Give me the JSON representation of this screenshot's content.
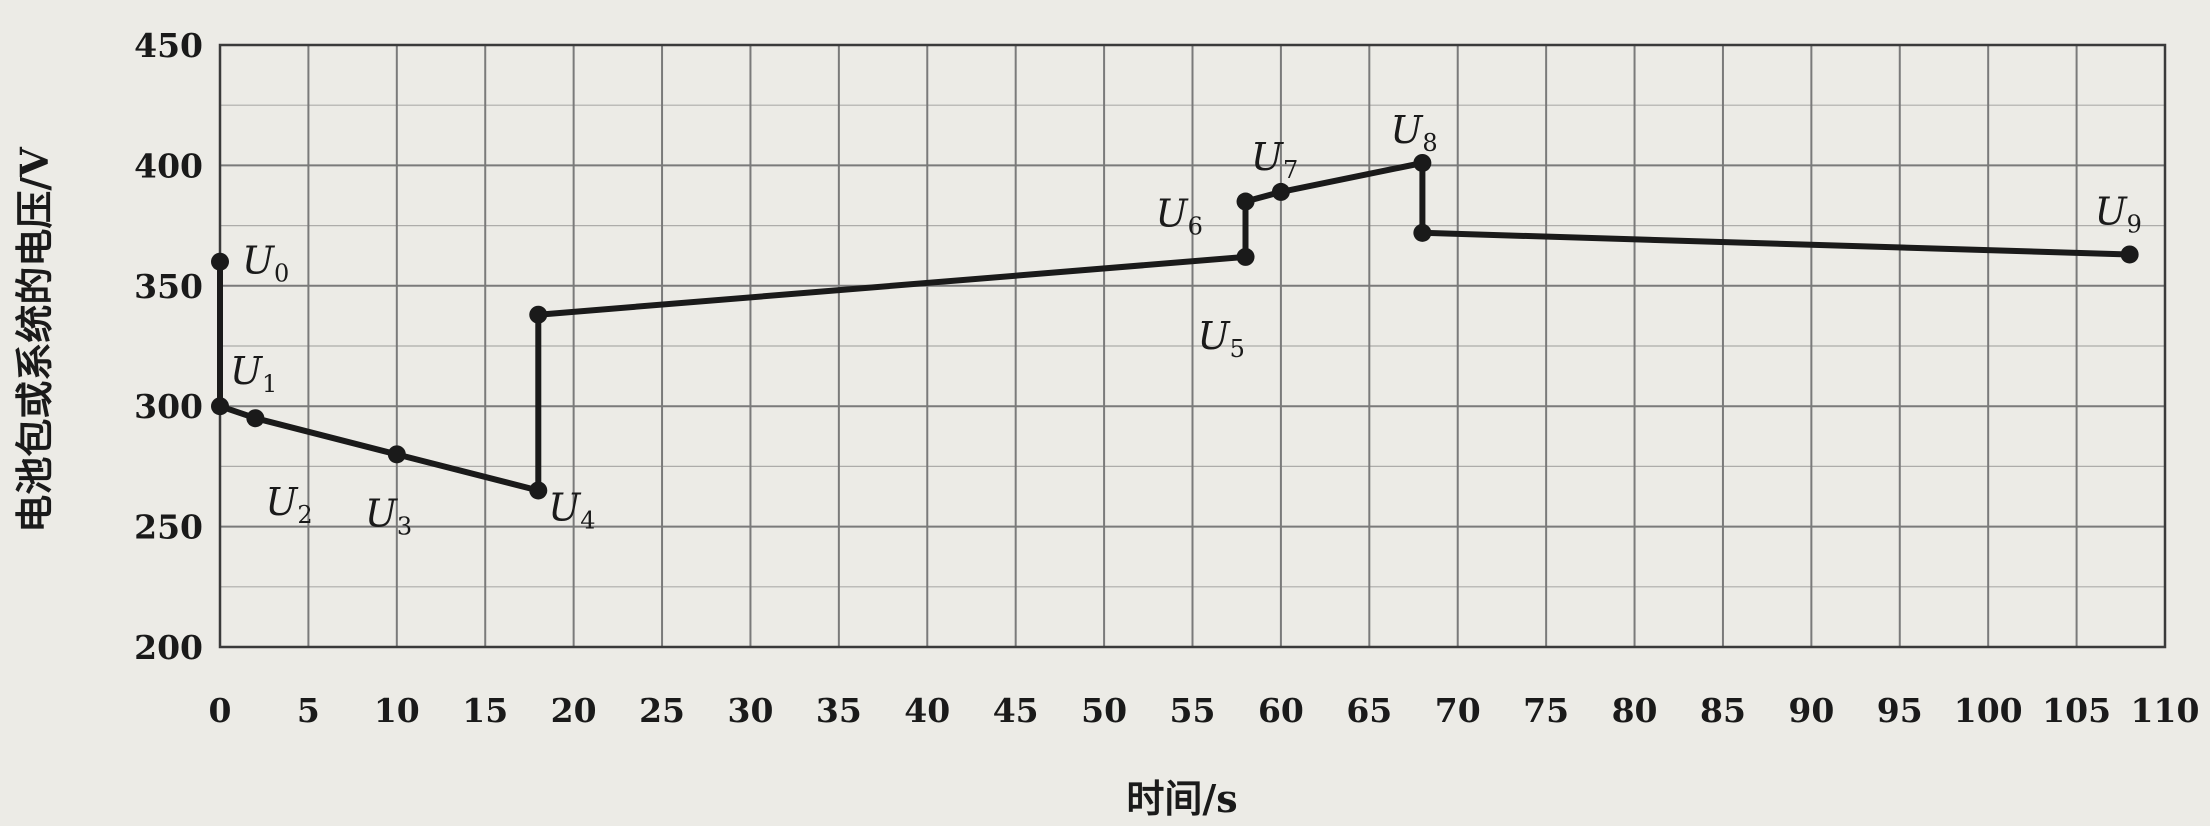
{
  "chart_data": {
    "type": "line",
    "title": "",
    "xlabel": "时间/s",
    "ylabel": "电池包或系统的电压/V",
    "xlim": [
      0,
      110
    ],
    "ylim": [
      200,
      450
    ],
    "x_ticks": [
      0,
      5,
      10,
      15,
      20,
      25,
      30,
      35,
      40,
      45,
      50,
      55,
      60,
      65,
      70,
      75,
      80,
      85,
      90,
      95,
      100,
      105,
      110
    ],
    "y_ticks": [
      200,
      250,
      300,
      350,
      400,
      450
    ],
    "grid": true,
    "series": [
      {
        "points": [
          {
            "x": 0,
            "y": 360
          },
          {
            "x": 0,
            "y": 300
          },
          {
            "x": 2,
            "y": 295
          },
          {
            "x": 10,
            "y": 280
          },
          {
            "x": 18,
            "y": 265
          },
          {
            "x": 18,
            "y": 338
          },
          {
            "x": 58,
            "y": 362
          },
          {
            "x": 58,
            "y": 385
          },
          {
            "x": 60,
            "y": 389
          },
          {
            "x": 68,
            "y": 401
          },
          {
            "x": 68,
            "y": 372
          },
          {
            "x": 108,
            "y": 363
          }
        ],
        "color": "#1a1a1a"
      }
    ],
    "point_labels": [
      {
        "main": "U",
        "sub": "0",
        "x": 0,
        "y": 360
      },
      {
        "main": "U",
        "sub": "1",
        "x": 0,
        "y": 300
      },
      {
        "main": "U",
        "sub": "2",
        "x": 2,
        "y": 295
      },
      {
        "main": "U",
        "sub": "3",
        "x": 10,
        "y": 280
      },
      {
        "main": "U",
        "sub": "4",
        "x": 18,
        "y": 265
      },
      {
        "main": "U",
        "sub": "5",
        "x": 58,
        "y": 362
      },
      {
        "main": "U",
        "sub": "6",
        "x": 58,
        "y": 385
      },
      {
        "main": "U",
        "sub": "7",
        "x": 60,
        "y": 389
      },
      {
        "main": "U",
        "sub": "8",
        "x": 68,
        "y": 401
      },
      {
        "main": "U",
        "sub": "9",
        "x": 108,
        "y": 363
      }
    ]
  },
  "colors": {
    "background": "#ecebe6",
    "grid": "#7a7a7a",
    "line": "#1a1a1a"
  }
}
